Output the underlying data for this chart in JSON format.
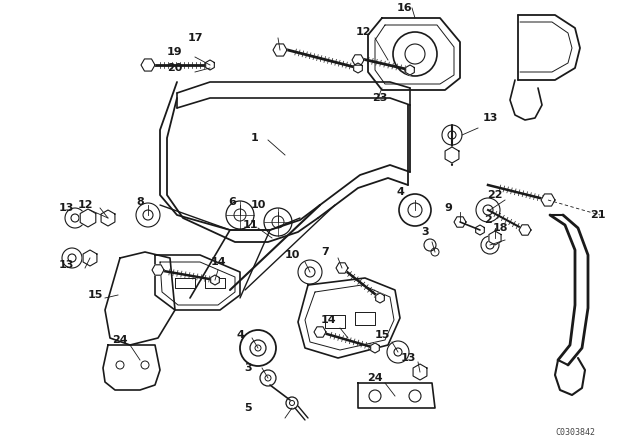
{
  "bg_color": "#ffffff",
  "line_color": "#1a1a1a",
  "watermark": "C0303842",
  "fig_width": 6.4,
  "fig_height": 4.48,
  "dpi": 100
}
